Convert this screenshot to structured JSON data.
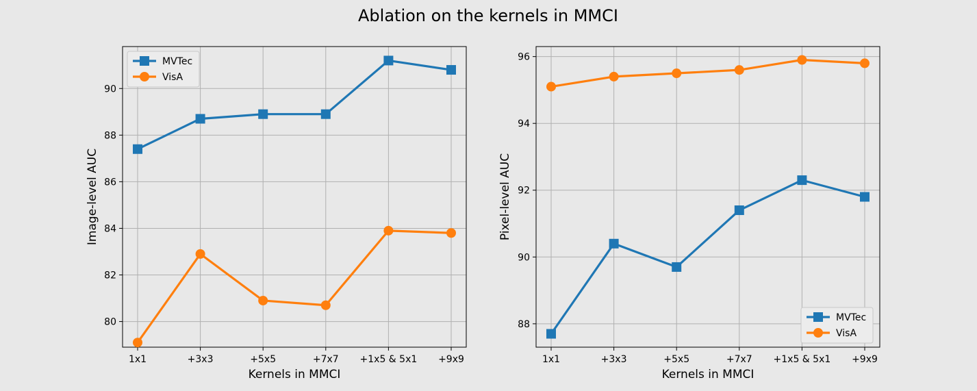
{
  "figure_title": "Ablation on the kernels in MMCI",
  "colors": {
    "MVTec": "#1f77b4",
    "VisA": "#ff7f0e",
    "grid": "#b0b0b0",
    "background": "#e8e8e8",
    "axes_bg": "#e8e8e8"
  },
  "chart_data": [
    {
      "type": "line",
      "title": "",
      "xlabel": "Kernels in MMCI",
      "ylabel": "Image-level AUC",
      "categories": [
        "1x1",
        "+3x3",
        "+5x5",
        "+7x7",
        "+1x5 & 5x1",
        "+9x9"
      ],
      "ylim": [
        78.9,
        91.8
      ],
      "yticks": [
        80,
        82,
        84,
        86,
        88,
        90
      ],
      "ytick_labels": [
        "80",
        "82",
        "84",
        "86",
        "88",
        "90"
      ],
      "grid": true,
      "legend_position": "upper left",
      "series": [
        {
          "name": "MVTec",
          "marker": "square",
          "values": [
            87.4,
            88.7,
            88.9,
            88.9,
            91.2,
            90.8
          ]
        },
        {
          "name": "VisA",
          "marker": "circle",
          "values": [
            79.1,
            82.9,
            80.9,
            80.7,
            83.9,
            83.8
          ]
        }
      ]
    },
    {
      "type": "line",
      "title": "",
      "xlabel": "Kernels in MMCI",
      "ylabel": "Pixel-level AUC",
      "categories": [
        "1x1",
        "+3x3",
        "+5x5",
        "+7x7",
        "+1x5 & 5x1",
        "+9x9"
      ],
      "ylim": [
        87.3,
        96.3
      ],
      "yticks": [
        88,
        90,
        92,
        94,
        96
      ],
      "ytick_labels": [
        "88",
        "90",
        "92",
        "94",
        "96"
      ],
      "grid": true,
      "legend_position": "lower right",
      "series": [
        {
          "name": "MVTec",
          "marker": "square",
          "values": [
            87.7,
            90.4,
            89.7,
            91.4,
            92.3,
            91.8
          ]
        },
        {
          "name": "VisA",
          "marker": "circle",
          "values": [
            95.1,
            95.4,
            95.5,
            95.6,
            95.9,
            95.8
          ]
        }
      ]
    }
  ]
}
